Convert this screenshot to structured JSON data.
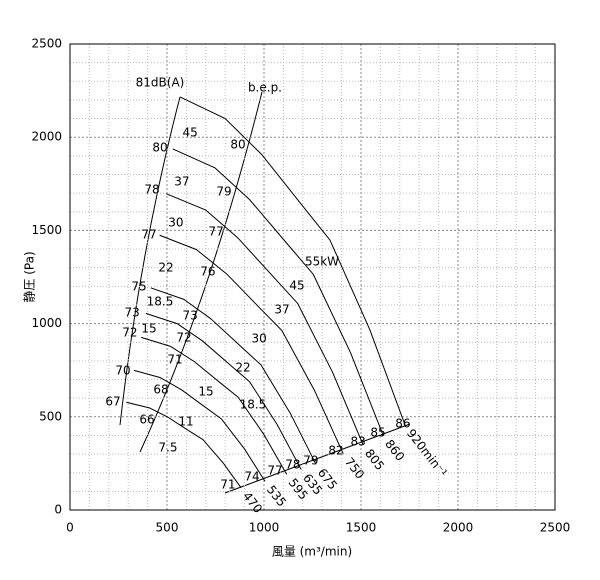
{
  "chart_data": {
    "type": "line",
    "x_label": "風量 (m³/min)",
    "y_label": "静圧 (Pa)",
    "xlim": [
      0,
      2500
    ],
    "ylim": [
      0,
      2500
    ],
    "xticks": [
      0,
      500,
      1000,
      1500,
      2000,
      2500
    ],
    "yticks": [
      0,
      500,
      1000,
      1500,
      2000,
      2500
    ],
    "grid": true,
    "minor_grid": true,
    "series": [
      {
        "name": "470",
        "color": "#000000",
        "x": [
          290,
          409,
          506,
          613,
          685,
          790,
          882
        ],
        "y": [
          578,
          548,
          497,
          425,
          378,
          252,
          119
        ]
      },
      {
        "name": "535",
        "color": "#000000",
        "x": [
          330,
          466,
          576,
          698,
          780,
          900,
          1005
        ],
        "y": [
          749,
          710,
          644,
          551,
          489,
          327,
          154
        ]
      },
      {
        "name": "595",
        "color": "#000000",
        "x": [
          367,
          518,
          641,
          776,
          867,
          1000,
          1117
        ],
        "y": [
          926,
          878,
          796,
          681,
          605,
          404,
          191
        ]
      },
      {
        "name": "635",
        "color": "#000000",
        "x": [
          391,
          552,
          683,
          828,
          925,
          1067,
          1192
        ],
        "y": [
          1055,
          1000,
          907,
          776,
          689,
          460,
          217
        ]
      },
      {
        "name": "675",
        "color": "#000000",
        "x": [
          416,
          587,
          727,
          881,
          984,
          1135,
          1268
        ],
        "y": [
          1192,
          1130,
          1025,
          877,
          779,
          520,
          245
        ]
      },
      {
        "name": "750",
        "color": "#000000",
        "x": [
          462,
          652,
          807,
          978,
          1092,
          1260,
          1408
        ],
        "y": [
          1474,
          1397,
          1267,
          1084,
          963,
          642,
          303
        ]
      },
      {
        "name": "805",
        "color": "#000000",
        "x": [
          496,
          700,
          866,
          1050,
          1173,
          1353,
          1511
        ],
        "y": [
          1697,
          1609,
          1459,
          1249,
          1109,
          740,
          349
        ]
      },
      {
        "name": "860",
        "color": "#000000",
        "x": [
          530,
          748,
          926,
          1122,
          1253,
          1446,
          1615
        ],
        "y": [
          1937,
          1835,
          1665,
          1425,
          1266,
          844,
          399
        ]
      },
      {
        "name": "920min⁻¹",
        "color": "#000000",
        "x": [
          567,
          800,
          990,
          1200,
          1340,
          1546,
          1727
        ],
        "y": [
          2216,
          2100,
          1905,
          1630,
          1448,
          966,
          456
        ]
      }
    ],
    "annotations": [
      {
        "text": "81dB(A)",
        "x": 464,
        "y": 2291
      },
      {
        "text": "b.e.p.",
        "x": 1005,
        "y": 2264
      },
      {
        "text": "80",
        "x": 464,
        "y": 1942
      },
      {
        "text": "45",
        "x": 619,
        "y": 2022
      },
      {
        "text": "80",
        "x": 866,
        "y": 1958
      },
      {
        "text": "78",
        "x": 423,
        "y": 1717
      },
      {
        "text": "37",
        "x": 577,
        "y": 1760
      },
      {
        "text": "79",
        "x": 794,
        "y": 1706
      },
      {
        "text": "77",
        "x": 407,
        "y": 1475
      },
      {
        "text": "30",
        "x": 546,
        "y": 1540
      },
      {
        "text": "77",
        "x": 753,
        "y": 1491
      },
      {
        "text": "55kW",
        "x": 1299,
        "y": 1330
      },
      {
        "text": "22",
        "x": 495,
        "y": 1298
      },
      {
        "text": "76",
        "x": 711,
        "y": 1277
      },
      {
        "text": "45",
        "x": 1170,
        "y": 1202
      },
      {
        "text": "75",
        "x": 356,
        "y": 1196
      },
      {
        "text": "18.5",
        "x": 464,
        "y": 1116
      },
      {
        "text": "73",
        "x": 320,
        "y": 1057
      },
      {
        "text": "73",
        "x": 619,
        "y": 1041
      },
      {
        "text": "37",
        "x": 1093,
        "y": 1073
      },
      {
        "text": "72",
        "x": 309,
        "y": 950
      },
      {
        "text": "15",
        "x": 407,
        "y": 971
      },
      {
        "text": "72",
        "x": 588,
        "y": 923
      },
      {
        "text": "30",
        "x": 975,
        "y": 917
      },
      {
        "text": "71",
        "x": 541,
        "y": 805
      },
      {
        "text": "70",
        "x": 273,
        "y": 746
      },
      {
        "text": "22",
        "x": 892,
        "y": 762
      },
      {
        "text": "68",
        "x": 469,
        "y": 644
      },
      {
        "text": "15",
        "x": 701,
        "y": 633
      },
      {
        "text": "67",
        "x": 222,
        "y": 579
      },
      {
        "text": "66",
        "x": 397,
        "y": 483
      },
      {
        "text": "11",
        "x": 598,
        "y": 472
      },
      {
        "text": "18.5",
        "x": 943,
        "y": 563
      },
      {
        "text": "7.5",
        "x": 505,
        "y": 333
      },
      {
        "text": "82",
        "x": 1371,
        "y": 317
      },
      {
        "text": "83",
        "x": 1485,
        "y": 365
      },
      {
        "text": "85",
        "x": 1588,
        "y": 413
      },
      {
        "text": "86",
        "x": 1716,
        "y": 461
      },
      {
        "text": "79",
        "x": 1242,
        "y": 263
      },
      {
        "text": "78",
        "x": 1149,
        "y": 241
      },
      {
        "text": "77",
        "x": 1057,
        "y": 209
      },
      {
        "text": "74",
        "x": 938,
        "y": 177
      },
      {
        "text": "71",
        "x": 814,
        "y": 134
      }
    ]
  }
}
